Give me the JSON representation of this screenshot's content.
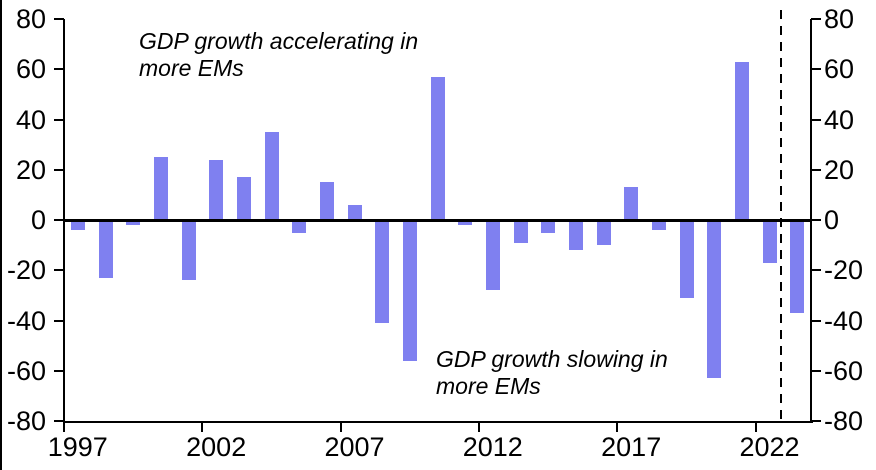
{
  "chart_data": {
    "type": "bar",
    "categories": [
      1997,
      1998,
      1999,
      2000,
      2001,
      2002,
      2003,
      2004,
      2005,
      2006,
      2007,
      2008,
      2009,
      2010,
      2011,
      2012,
      2013,
      2014,
      2015,
      2016,
      2017,
      2018,
      2019,
      2020,
      2021,
      2022,
      2023
    ],
    "values": [
      -4,
      -23,
      -2,
      25,
      -24,
      24,
      17,
      35,
      -5,
      15,
      6,
      -41,
      -56,
      57,
      -2,
      -28,
      -9,
      -5,
      -12,
      -10,
      13,
      -4,
      -31,
      -63,
      63,
      -17,
      -37
    ],
    "title": "",
    "xlabel": "",
    "ylabel": "",
    "ylim": [
      -80,
      80
    ],
    "yticks": [
      80,
      60,
      40,
      20,
      0,
      -20,
      -40,
      -60,
      -80
    ],
    "xtick_years": [
      1997,
      2002,
      2007,
      2012,
      2017,
      2022
    ],
    "grid": false,
    "legend": "none",
    "bar_color": "#7F80F0",
    "axis_color": "#000000",
    "dashed_divider": {
      "between": [
        2022,
        2023
      ]
    },
    "annotations": [
      {
        "line1": "GDP growth accelerating in",
        "line2": "more EMs"
      },
      {
        "line1": "GDP growth slowing in",
        "line2": "more EMs"
      }
    ]
  }
}
